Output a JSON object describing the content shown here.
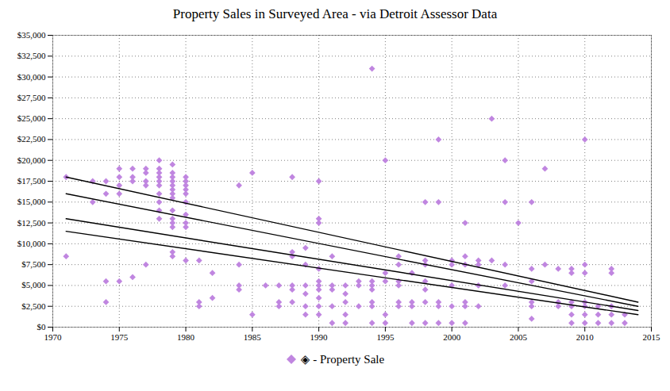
{
  "chart_data": {
    "type": "scatter",
    "title": "Property Sales in Surveyed Area - via Detroit Assessor Data",
    "xlim": [
      1970,
      2015
    ],
    "ylim": [
      0,
      35000
    ],
    "xticks": [
      1970,
      1975,
      1980,
      1985,
      1990,
      1995,
      2000,
      2005,
      2010,
      2015
    ],
    "yticks": [
      {
        "value": 0,
        "label": "$0"
      },
      {
        "value": 2500,
        "label": "$2,500"
      },
      {
        "value": 5000,
        "label": "$5,000"
      },
      {
        "value": 7500,
        "label": "$7,500"
      },
      {
        "value": 10000,
        "label": "$10,000"
      },
      {
        "value": 12500,
        "label": "$12,500"
      },
      {
        "value": 15000,
        "label": "$15,000"
      },
      {
        "value": 17500,
        "label": "$17,500"
      },
      {
        "value": 20000,
        "label": "$20,000"
      },
      {
        "value": 22500,
        "label": "$22,500"
      },
      {
        "value": 25000,
        "label": "$25,000"
      },
      {
        "value": 27500,
        "label": "$27,500"
      },
      {
        "value": 30000,
        "label": "$30,000"
      },
      {
        "value": 32500,
        "label": "$32,500"
      },
      {
        "value": 35000,
        "label": "$35,000"
      }
    ],
    "grid": true,
    "legend": "bottom",
    "series": [
      {
        "name": "◈ - Property Sale",
        "type": "scatter",
        "marker": "diamond",
        "color": "#c086e0",
        "x": [
          1971,
          1971,
          1973,
          1973,
          1974,
          1974,
          1974,
          1974,
          1975,
          1975,
          1975,
          1975,
          1975,
          1976,
          1976,
          1976,
          1976,
          1977,
          1977,
          1977,
          1977,
          1977,
          1978,
          1978,
          1978,
          1978,
          1978,
          1978,
          1978,
          1978,
          1978,
          1978,
          1979,
          1979,
          1979,
          1979,
          1979,
          1979,
          1979,
          1979,
          1979,
          1979,
          1979,
          1979,
          1979,
          1979,
          1980,
          1980,
          1980,
          1980,
          1980,
          1980,
          1980,
          1980,
          1980,
          1980,
          1981,
          1981,
          1981,
          1982,
          1982,
          1984,
          1984,
          1984,
          1984,
          1985,
          1985,
          1986,
          1987,
          1987,
          1987,
          1988,
          1988,
          1988,
          1988,
          1988,
          1988,
          1989,
          1989,
          1989,
          1989,
          1989,
          1989,
          1990,
          1990,
          1990,
          1990,
          1990,
          1990,
          1990,
          1990,
          1990,
          1990,
          1991,
          1991,
          1991,
          1991,
          1991,
          1992,
          1992,
          1992,
          1992,
          1992,
          1993,
          1993,
          1993,
          1994,
          1994,
          1994,
          1994,
          1994,
          1994,
          1994,
          1995,
          1995,
          1995,
          1995,
          1995,
          1996,
          1996,
          1996,
          1996,
          1996,
          1996,
          1997,
          1997,
          1997,
          1997,
          1998,
          1998,
          1998,
          1998,
          1998,
          1998,
          1998,
          1999,
          1999,
          1999,
          1999,
          1999,
          2000,
          2000,
          2000,
          2000,
          2000,
          2001,
          2001,
          2001,
          2001,
          2001,
          2001,
          2002,
          2002,
          2002,
          2002,
          2003,
          2003,
          2004,
          2004,
          2004,
          2004,
          2005,
          2006,
          2006,
          2006,
          2006,
          2006,
          2006,
          2007,
          2007,
          2008,
          2008,
          2008,
          2009,
          2009,
          2009,
          2009,
          2009,
          2009,
          2010,
          2010,
          2010,
          2010,
          2010,
          2010,
          2010,
          2011,
          2011,
          2011,
          2012,
          2012,
          2012,
          2012,
          2012,
          2013,
          2013
        ],
        "values": [
          18000,
          8500,
          17500,
          15000,
          17500,
          16000,
          5500,
          3000,
          19000,
          18000,
          17000,
          16000,
          5500,
          19000,
          18000,
          17500,
          6000,
          19000,
          18500,
          17500,
          17000,
          7500,
          20000,
          19000,
          18500,
          18000,
          17500,
          17000,
          16000,
          15000,
          14000,
          13000,
          19500,
          18500,
          18000,
          17500,
          17000,
          16500,
          16000,
          15500,
          14000,
          13000,
          12500,
          12000,
          9000,
          8500,
          18000,
          17500,
          17000,
          16500,
          16000,
          15000,
          13500,
          12500,
          12000,
          8000,
          8000,
          3000,
          2500,
          6500,
          3500,
          17000,
          7500,
          5000,
          4500,
          18500,
          1500,
          5000,
          5000,
          3000,
          2500,
          18000,
          9000,
          8500,
          5000,
          4500,
          3000,
          9500,
          7500,
          5000,
          4000,
          2500,
          1500,
          17500,
          13000,
          12500,
          7000,
          5500,
          5000,
          4500,
          3500,
          2500,
          1500,
          8500,
          5000,
          4500,
          2500,
          500,
          5000,
          4000,
          3000,
          1500,
          500,
          5500,
          5000,
          2500,
          31000,
          5500,
          5000,
          4500,
          3000,
          2500,
          500,
          20000,
          6500,
          5500,
          1500,
          500,
          8500,
          7500,
          5500,
          5000,
          3000,
          2500,
          6500,
          3000,
          2500,
          500,
          15000,
          8000,
          7500,
          5500,
          4500,
          3000,
          500,
          22500,
          15000,
          3000,
          2500,
          500,
          8000,
          7500,
          5000,
          2500,
          500,
          12500,
          8500,
          7500,
          3000,
          2500,
          500,
          8000,
          7500,
          5000,
          2500,
          25000,
          8000,
          20000,
          15000,
          7500,
          5000,
          12500,
          15000,
          7000,
          5500,
          3000,
          2500,
          1000,
          19000,
          7500,
          7000,
          3000,
          2500,
          7000,
          6500,
          3000,
          2500,
          1500,
          500,
          22500,
          7500,
          6500,
          3000,
          2500,
          1500,
          500,
          2500,
          1500,
          500,
          7000,
          6500,
          2500,
          1500,
          500,
          1500,
          500
        ]
      },
      {
        "type": "line",
        "color": "black",
        "x": [
          1971,
          2014
        ],
        "values": [
          18000,
          3000
        ]
      },
      {
        "type": "line",
        "color": "black",
        "x": [
          1971,
          2014
        ],
        "values": [
          16000,
          2500
        ]
      },
      {
        "type": "line",
        "color": "black",
        "x": [
          1971,
          2014
        ],
        "values": [
          13000,
          2000
        ]
      },
      {
        "type": "line",
        "color": "black",
        "x": [
          1971,
          2014
        ],
        "values": [
          11500,
          1500
        ]
      }
    ]
  }
}
